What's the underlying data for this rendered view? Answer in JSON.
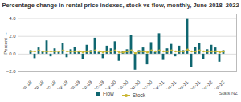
{
  "chart_data": {
    "type": "bar",
    "title": "Percentage change in rental price indexes, stock vs flow, monthly, June 2018–2022",
    "y_label": "Percent",
    "source": "Stats NZ",
    "categories": [
      "Jun-18",
      null,
      null,
      "Sep-18",
      null,
      null,
      "Dec-18",
      null,
      null,
      "Mar-19",
      null,
      null,
      "Jun-19",
      null,
      null,
      "Sep-19",
      null,
      null,
      "Dec-19",
      null,
      null,
      "Mar-20",
      null,
      null,
      "Jun-20",
      null,
      null,
      "Sep-20",
      null,
      null,
      "Dec-20",
      null,
      null,
      "Mar-21",
      null,
      null,
      "Jun-21",
      null,
      null,
      "Sep-21",
      null,
      null,
      "Dec-21",
      null,
      null,
      "Mar-22",
      null,
      null,
      "Jun-22"
    ],
    "series": [
      {
        "name": "Flow",
        "type": "bar",
        "color": "#0f6670",
        "values": [
          0.4,
          -0.5,
          0.7,
          0.3,
          1.5,
          -0.3,
          0.6,
          0.2,
          1.2,
          -0.4,
          0.5,
          0.8,
          0.3,
          -0.6,
          1.0,
          0.4,
          1.8,
          0.2,
          -0.5,
          0.9,
          0.6,
          1.4,
          -0.8,
          0.3,
          0.5,
          2.1,
          -1.8,
          0.4,
          0.7,
          -1.2,
          1.3,
          0.2,
          2.3,
          -0.7,
          0.6,
          1.1,
          -0.3,
          0.9,
          0.4,
          3.9,
          -1.5,
          0.8,
          1.2,
          -0.6,
          0.5,
          1.0,
          0.7,
          -0.9,
          0.4
        ]
      },
      {
        "name": "Stock",
        "type": "line",
        "marker": "circle",
        "color": "#c9b530",
        "values": [
          0.3,
          0.3,
          0.4,
          0.3,
          0.3,
          0.3,
          0.3,
          0.3,
          0.4,
          0.3,
          0.3,
          0.3,
          0.3,
          0.2,
          0.3,
          0.3,
          0.4,
          0.3,
          0.2,
          0.3,
          0.3,
          0.4,
          0.2,
          0.2,
          0.3,
          0.4,
          0.1,
          0.3,
          0.3,
          0.2,
          0.4,
          0.3,
          0.4,
          0.3,
          0.3,
          0.4,
          0.3,
          0.3,
          0.3,
          0.5,
          0.3,
          0.3,
          0.4,
          0.3,
          0.3,
          0.3,
          0.3,
          0.2,
          0.3
        ]
      }
    ],
    "ylim": [
      -2,
      4.5
    ],
    "yticks": [
      -2,
      0,
      2,
      4
    ],
    "grid": true,
    "legend": "bottom"
  }
}
